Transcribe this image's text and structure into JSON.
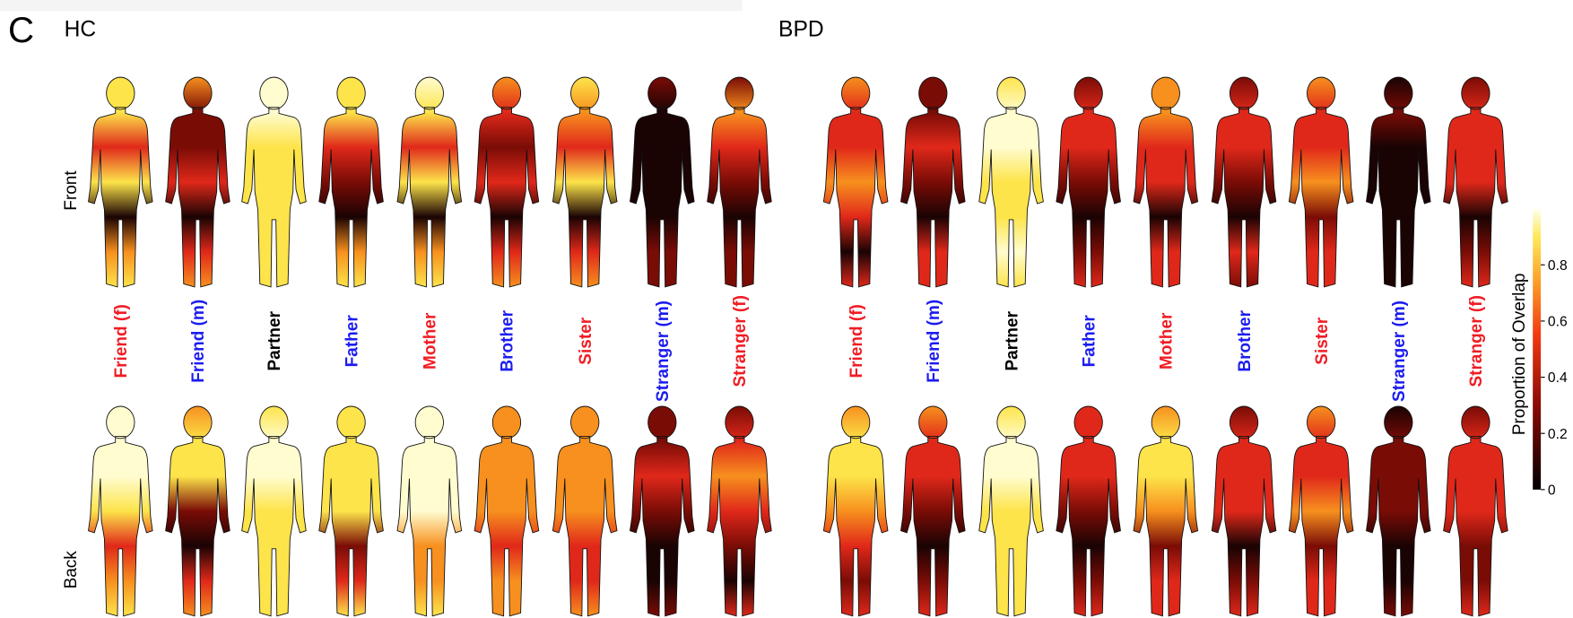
{
  "panel_letter": "C",
  "groups": [
    {
      "title": "HC",
      "labels": [
        {
          "text": "Friend (f)",
          "color": "#f01c24"
        },
        {
          "text": "Friend (m)",
          "color": "#1c1cf0"
        },
        {
          "text": "Partner",
          "color": "#000000"
        },
        {
          "text": "Father",
          "color": "#1c1cf0"
        },
        {
          "text": "Mother",
          "color": "#f01c24"
        },
        {
          "text": "Brother",
          "color": "#1c1cf0"
        },
        {
          "text": "Sister",
          "color": "#f01c24"
        },
        {
          "text": "Stranger (m)",
          "color": "#1c1cf0"
        },
        {
          "text": "Stranger (f)",
          "color": "#f01c24"
        }
      ]
    },
    {
      "title": "BPD",
      "labels": [
        {
          "text": "Friend (f)",
          "color": "#f01c24"
        },
        {
          "text": "Friend (m)",
          "color": "#1c1cf0"
        },
        {
          "text": "Partner",
          "color": "#000000"
        },
        {
          "text": "Father",
          "color": "#1c1cf0"
        },
        {
          "text": "Mother",
          "color": "#f01c24"
        },
        {
          "text": "Brother",
          "color": "#1c1cf0"
        },
        {
          "text": "Sister",
          "color": "#f01c24"
        },
        {
          "text": "Stranger (m)",
          "color": "#1c1cf0"
        },
        {
          "text": "Stranger (f)",
          "color": "#f01c24"
        }
      ]
    }
  ],
  "views": [
    "Front",
    "Back"
  ],
  "colorbar": {
    "label": "Proportion of Overlap",
    "lim": [
      0,
      1
    ],
    "ticks": [
      0,
      0.2,
      0.4,
      0.6,
      0.8
    ]
  }
}
